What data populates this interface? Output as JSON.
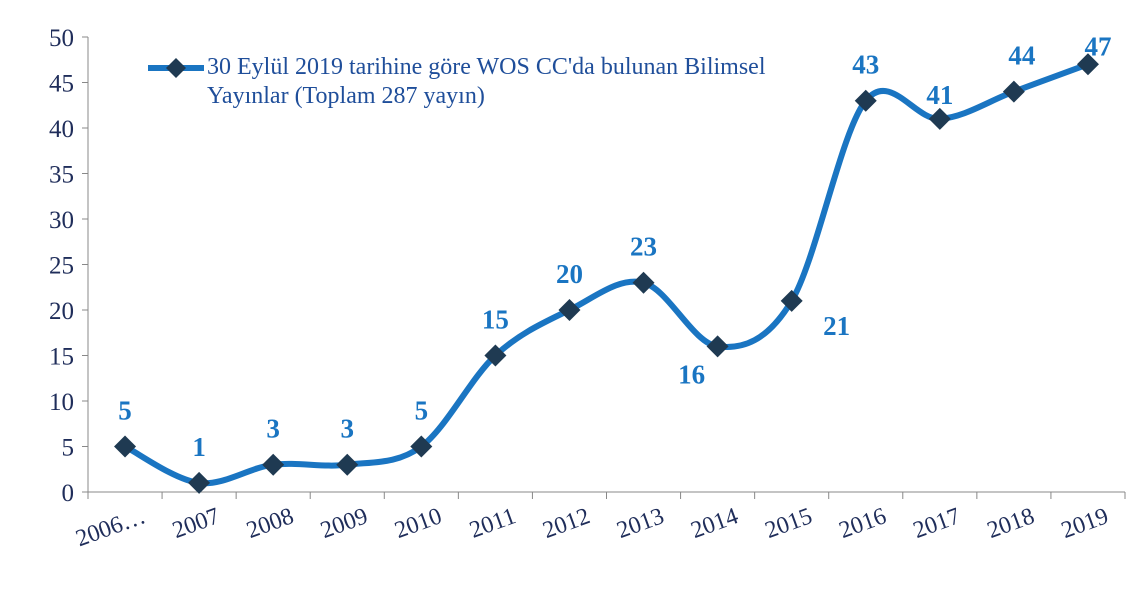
{
  "chart_data": {
    "type": "line",
    "categories": [
      "2006…",
      "2007",
      "2008",
      "2009",
      "2010",
      "2011",
      "2012",
      "2013",
      "2014",
      "2015",
      "2016",
      "2017",
      "2018",
      "2019"
    ],
    "series": [
      {
        "name": "30 Eylül 2019 tarihine göre WOS CC'da bulunan Bilimsel Yayınlar (Toplam 287 yayın)",
        "color": "#1a75c2",
        "marker_color": "#1f3a52",
        "values": [
          5,
          1,
          3,
          3,
          5,
          15,
          20,
          23,
          16,
          21,
          43,
          41,
          44,
          47
        ]
      }
    ],
    "ylim": [
      0,
      50
    ],
    "yticks": [
      0,
      5,
      10,
      15,
      20,
      25,
      30,
      35,
      40,
      45,
      50
    ],
    "grid": false,
    "legend": "top-left"
  }
}
